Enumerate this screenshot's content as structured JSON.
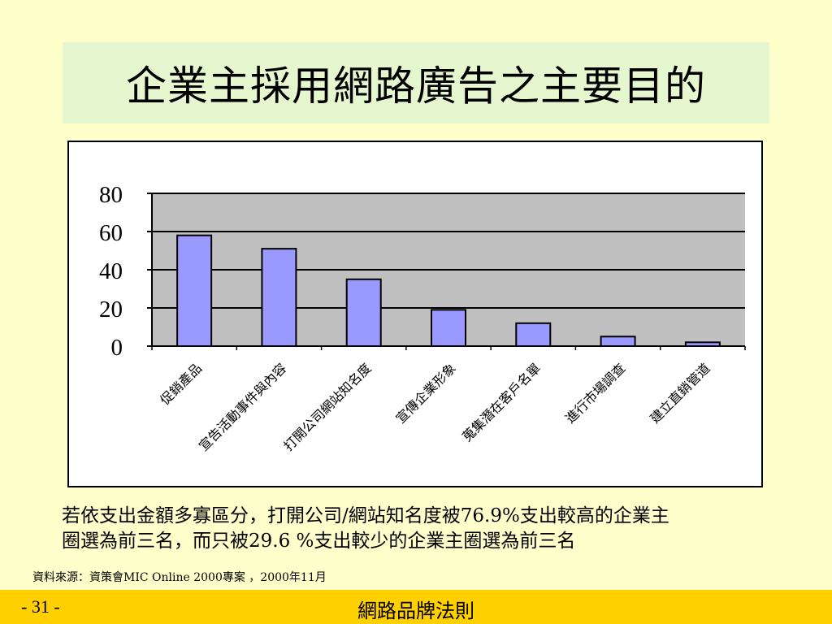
{
  "slide": {
    "title": "企業主採用網路廣告之主要目的",
    "note_line1": "若依支出金額多寡區分，打開公司/網站知名度被76.9%支出較高的企業主",
    "note_line2": "圈選為前三名，而只被29.6 %支出較少的企業主圈選為前三名",
    "source": "資料來源：資策會MIC Online 2000專案 ，2000年11月",
    "page_number": "- 31 -",
    "footer_title": "網路品牌法則"
  },
  "colors": {
    "background": "#ffffcc",
    "title_bg": "#e6f7cf",
    "plot_bg": "#c0c0c0",
    "bar_fill": "#9999ff",
    "footer_bg": "#ffd000"
  },
  "chart_data": {
    "type": "bar",
    "categories": [
      "促銷產品",
      "宣告活動事件與內容",
      "打開公司網站知名度",
      "宣傳企業形象",
      "蒐集潛在客戶名單",
      "進行市場調查",
      "建立直銷管道"
    ],
    "values": [
      58,
      51,
      35,
      19,
      12,
      5,
      2
    ],
    "title": "",
    "xlabel": "",
    "ylabel": "",
    "ylim": [
      0,
      80
    ],
    "yticks": [
      0,
      20,
      40,
      60,
      80
    ],
    "grid": true,
    "legend": "none"
  }
}
